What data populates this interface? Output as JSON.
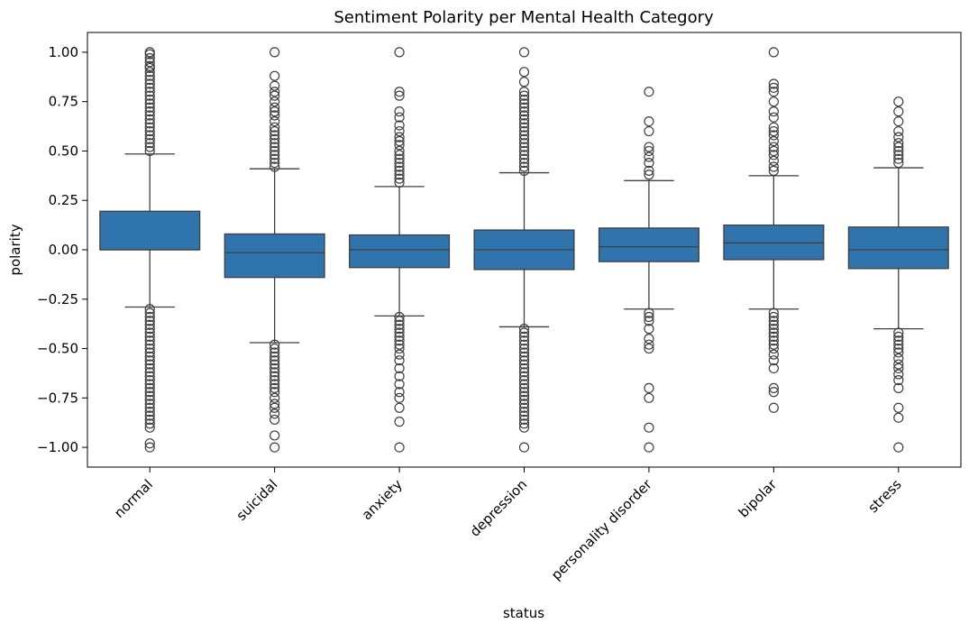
{
  "chart_data": {
    "type": "box",
    "title": "Sentiment Polarity per Mental Health Category",
    "xlabel": "status",
    "ylabel": "polarity",
    "ylim": [
      -1.1,
      1.1
    ],
    "yticks": [
      "1.00",
      "0.75",
      "0.50",
      "0.25",
      "0.00",
      "−0.25",
      "−0.50",
      "−0.75",
      "−1.00"
    ],
    "ytick_values": [
      1.0,
      0.75,
      0.5,
      0.25,
      0.0,
      -0.25,
      -0.5,
      -0.75,
      -1.0
    ],
    "grid": false,
    "box_color": "#2f74ad",
    "categories": [
      "normal",
      "suicidal",
      "anxiety",
      "depression",
      "personality disorder",
      "bipolar",
      "stress"
    ],
    "boxes": [
      {
        "category": "normal",
        "whisker_low": -0.29,
        "q1": 0.0,
        "median": 0.0,
        "q3": 0.195,
        "whisker_high": 0.485,
        "outliers": [
          1.0,
          0.99,
          0.97,
          0.95,
          0.93,
          0.92,
          0.9,
          0.88,
          0.86,
          0.84,
          0.82,
          0.8,
          0.78,
          0.76,
          0.74,
          0.72,
          0.7,
          0.68,
          0.66,
          0.64,
          0.62,
          0.6,
          0.58,
          0.56,
          0.54,
          0.52,
          0.5,
          -0.3,
          -0.32,
          -0.34,
          -0.36,
          -0.38,
          -0.4,
          -0.42,
          -0.44,
          -0.46,
          -0.48,
          -0.5,
          -0.52,
          -0.54,
          -0.56,
          -0.58,
          -0.6,
          -0.62,
          -0.64,
          -0.66,
          -0.68,
          -0.7,
          -0.72,
          -0.74,
          -0.76,
          -0.78,
          -0.8,
          -0.82,
          -0.84,
          -0.86,
          -0.88,
          -0.9,
          -0.98,
          -1.0
        ]
      },
      {
        "category": "suicidal",
        "whisker_low": -0.47,
        "q1": -0.14,
        "median": -0.015,
        "q3": 0.08,
        "whisker_high": 0.41,
        "outliers": [
          1.0,
          0.88,
          0.83,
          0.8,
          0.78,
          0.75,
          0.72,
          0.7,
          0.68,
          0.65,
          0.62,
          0.6,
          0.58,
          0.56,
          0.54,
          0.52,
          0.5,
          0.48,
          0.46,
          0.44,
          0.42,
          -0.48,
          -0.5,
          -0.52,
          -0.54,
          -0.56,
          -0.58,
          -0.6,
          -0.62,
          -0.64,
          -0.66,
          -0.68,
          -0.7,
          -0.72,
          -0.75,
          -0.78,
          -0.8,
          -0.83,
          -0.86,
          -0.94,
          -1.0
        ]
      },
      {
        "category": "anxiety",
        "whisker_low": -0.335,
        "q1": -0.09,
        "median": 0.0,
        "q3": 0.075,
        "whisker_high": 0.32,
        "outliers": [
          1.0,
          0.8,
          0.78,
          0.7,
          0.67,
          0.63,
          0.6,
          0.57,
          0.55,
          0.53,
          0.5,
          0.48,
          0.46,
          0.44,
          0.42,
          0.4,
          0.38,
          0.36,
          0.34,
          -0.34,
          -0.36,
          -0.38,
          -0.4,
          -0.42,
          -0.44,
          -0.46,
          -0.48,
          -0.5,
          -0.53,
          -0.56,
          -0.6,
          -0.64,
          -0.68,
          -0.72,
          -0.75,
          -0.8,
          -0.87,
          -1.0
        ]
      },
      {
        "category": "depression",
        "whisker_low": -0.39,
        "q1": -0.1,
        "median": 0.0,
        "q3": 0.1,
        "whisker_high": 0.39,
        "outliers": [
          1.0,
          0.9,
          0.85,
          0.8,
          0.78,
          0.76,
          0.74,
          0.72,
          0.7,
          0.68,
          0.66,
          0.64,
          0.62,
          0.6,
          0.58,
          0.56,
          0.54,
          0.52,
          0.5,
          0.48,
          0.46,
          0.44,
          0.42,
          0.4,
          -0.4,
          -0.42,
          -0.44,
          -0.46,
          -0.48,
          -0.5,
          -0.52,
          -0.54,
          -0.56,
          -0.58,
          -0.6,
          -0.62,
          -0.64,
          -0.66,
          -0.68,
          -0.7,
          -0.72,
          -0.74,
          -0.76,
          -0.78,
          -0.8,
          -0.82,
          -0.84,
          -0.86,
          -0.88,
          -0.9,
          -1.0
        ]
      },
      {
        "category": "personality disorder",
        "whisker_low": -0.3,
        "q1": -0.06,
        "median": 0.015,
        "q3": 0.11,
        "whisker_high": 0.35,
        "outliers": [
          0.8,
          0.65,
          0.6,
          0.52,
          0.5,
          0.47,
          0.44,
          0.4,
          0.38,
          -0.32,
          -0.34,
          -0.36,
          -0.4,
          -0.45,
          -0.48,
          -0.5,
          -0.7,
          -0.75,
          -0.9,
          -1.0
        ]
      },
      {
        "category": "bipolar",
        "whisker_low": -0.3,
        "q1": -0.05,
        "median": 0.035,
        "q3": 0.125,
        "whisker_high": 0.375,
        "outliers": [
          1.0,
          0.84,
          0.82,
          0.8,
          0.75,
          0.7,
          0.67,
          0.62,
          0.6,
          0.58,
          0.55,
          0.52,
          0.5,
          0.48,
          0.45,
          0.42,
          0.4,
          -0.32,
          -0.34,
          -0.36,
          -0.38,
          -0.4,
          -0.42,
          -0.44,
          -0.46,
          -0.48,
          -0.5,
          -0.53,
          -0.56,
          -0.6,
          -0.7,
          -0.72,
          -0.8
        ]
      },
      {
        "category": "stress",
        "whisker_low": -0.4,
        "q1": -0.095,
        "median": 0.0,
        "q3": 0.115,
        "whisker_high": 0.415,
        "outliers": [
          0.75,
          0.7,
          0.65,
          0.6,
          0.57,
          0.54,
          0.52,
          0.5,
          0.48,
          0.46,
          0.44,
          -0.42,
          -0.44,
          -0.46,
          -0.48,
          -0.5,
          -0.52,
          -0.55,
          -0.58,
          -0.6,
          -0.63,
          -0.66,
          -0.7,
          -0.8,
          -0.85,
          -1.0
        ]
      }
    ]
  }
}
